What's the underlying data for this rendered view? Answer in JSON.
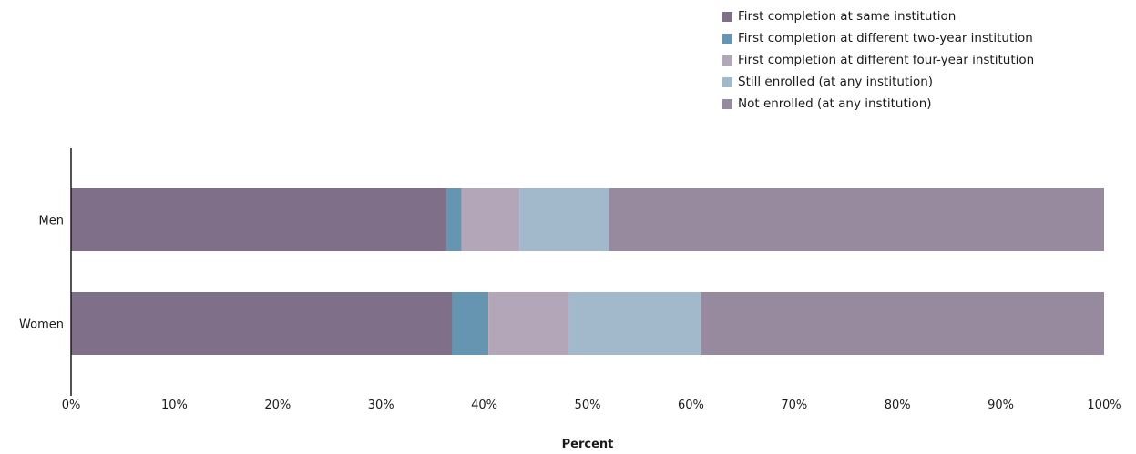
{
  "chart_data": {
    "type": "bar",
    "orientation": "horizontal",
    "stacked": true,
    "categories": [
      "Men",
      "Women"
    ],
    "series": [
      {
        "name": "First completion at same institution",
        "color": "#806f88",
        "values": [
          36.4,
          36.9
        ]
      },
      {
        "name": "First completion at different two-year institution",
        "color": "#6595b0",
        "values": [
          1.4,
          3.5
        ]
      },
      {
        "name": "First completion at different four-year institution",
        "color": "#b3a6b8",
        "values": [
          5.6,
          7.8
        ]
      },
      {
        "name": "Still enrolled (at any institution)",
        "color": "#a2b8cb",
        "values": [
          8.7,
          12.8
        ]
      },
      {
        "name": "Not enrolled (at any institution)",
        "color": "#978a9e",
        "values": [
          47.9,
          39.0
        ]
      }
    ],
    "xlabel": "Percent",
    "xlim": [
      0,
      100
    ],
    "xticks": [
      "0%",
      "10%",
      "20%",
      "30%",
      "40%",
      "50%",
      "60%",
      "70%",
      "80%",
      "90%",
      "100%"
    ],
    "grid": false,
    "legend_position": "top-right"
  }
}
